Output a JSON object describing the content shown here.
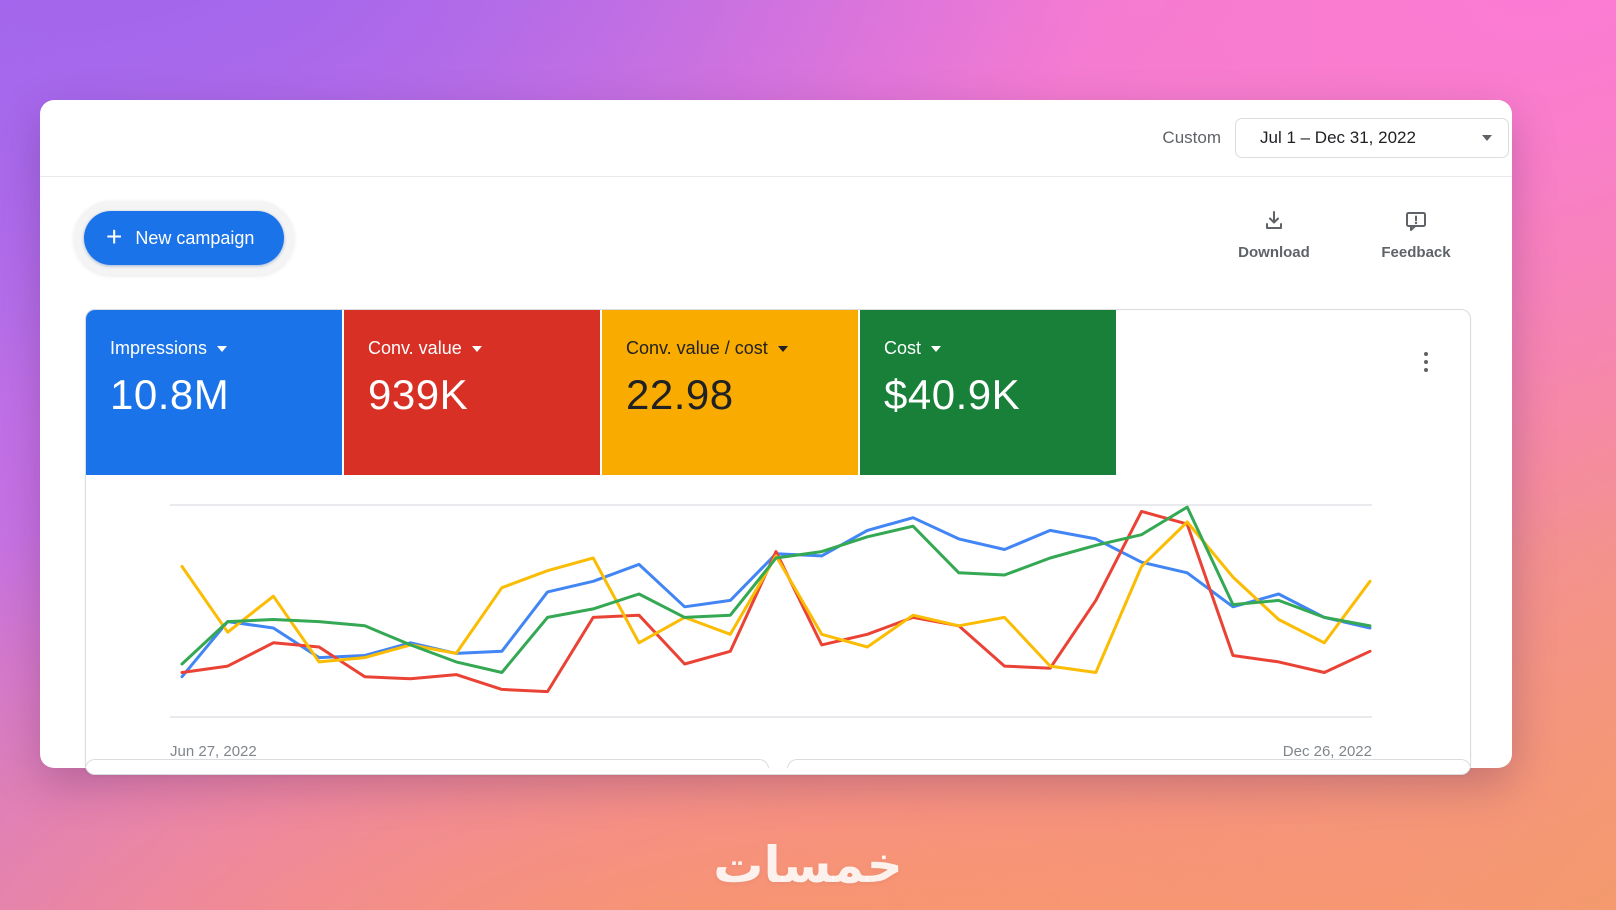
{
  "header": {
    "custom_label": "Custom",
    "date_range": "Jul 1 – Dec 31, 2022"
  },
  "toolbar": {
    "new_campaign": "New campaign",
    "download": "Download",
    "feedback": "Feedback"
  },
  "scorecards": [
    {
      "label": "Impressions",
      "value": "10.8M",
      "color": "#1a73e8",
      "text_color": "#ffffff"
    },
    {
      "label": "Conv. value",
      "value": "939K",
      "color": "#d93025",
      "text_color": "#ffffff"
    },
    {
      "label": "Conv. value / cost",
      "value": "22.98",
      "color": "#f9ab00",
      "text_color": "#202124"
    },
    {
      "label": "Cost",
      "value": "$40.9K",
      "color": "#188038",
      "text_color": "#ffffff"
    }
  ],
  "chart_data": {
    "type": "line",
    "title": "",
    "x_start_label": "Jun 27, 2022",
    "x_end_label": "Dec 26, 2022",
    "x_unit": "weeks from Jun 27, 2022 to Dec 26, 2022 (27 points)",
    "y_unit": "relative height 0-100 (chart has no y-axis labels)",
    "ylim": [
      0,
      100
    ],
    "grid": "top and bottom horizontal gridlines only",
    "legend": "none (series colors match scorecards)",
    "series": [
      {
        "name": "Impressions",
        "color": "#4285f4",
        "values": [
          19,
          45,
          42,
          28,
          29,
          35,
          30,
          31,
          59,
          64,
          72,
          52,
          55,
          77,
          76,
          88,
          94,
          84,
          79,
          88,
          84,
          73,
          68,
          52,
          58,
          47,
          42
        ]
      },
      {
        "name": "Conv. value",
        "color": "#ea4335",
        "values": [
          21,
          24,
          35,
          33,
          19,
          18,
          20,
          13,
          12,
          47,
          48,
          25,
          31,
          78,
          34,
          39,
          47,
          43,
          24,
          23,
          55,
          97,
          91,
          29,
          26,
          21,
          31
        ]
      },
      {
        "name": "Conv. value / cost",
        "color": "#fbbc04",
        "values": [
          71,
          40,
          57,
          26,
          28,
          34,
          30,
          61,
          69,
          75,
          35,
          47,
          39,
          76,
          39,
          33,
          48,
          43,
          47,
          24,
          21,
          71,
          92,
          66,
          46,
          35,
          64
        ]
      },
      {
        "name": "Cost",
        "color": "#34a853",
        "values": [
          25,
          45,
          46,
          45,
          43,
          34,
          26,
          21,
          47,
          51,
          58,
          47,
          48,
          75,
          78,
          85,
          90,
          68,
          67,
          75,
          81,
          86,
          99,
          53,
          55,
          47,
          43
        ]
      }
    ]
  },
  "watermark": "خمسات",
  "colors": {
    "accent": "#1a73e8",
    "muted_text": "#5f6368",
    "gridline": "#e8eaed"
  }
}
